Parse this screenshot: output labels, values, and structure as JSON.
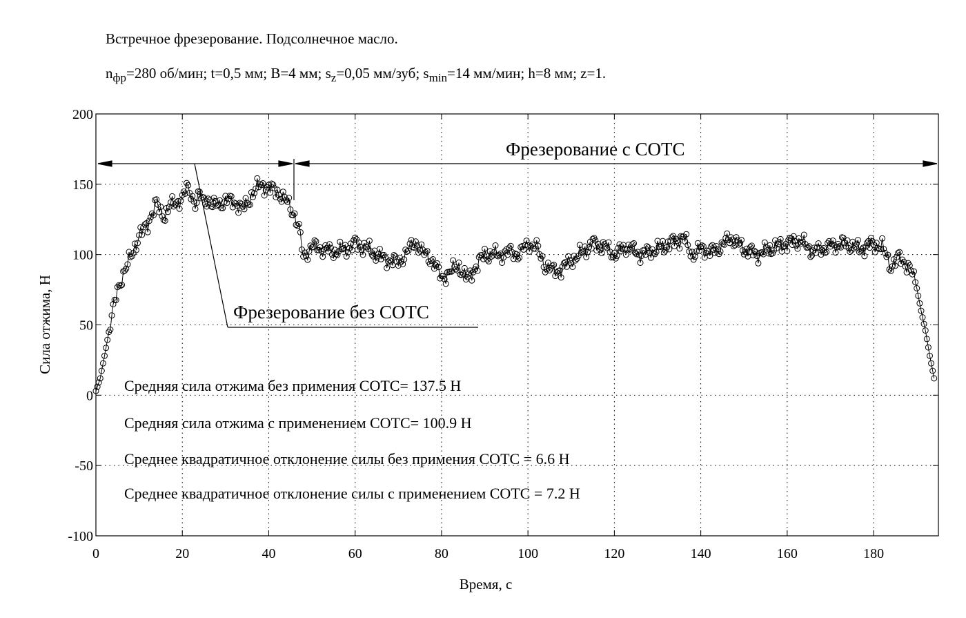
{
  "header": {
    "title": "Встречное фрезерование. Подсолнечное масло.",
    "params": [
      {
        "t": "n",
        "sub": "фр"
      },
      {
        "t": "=280 об/мин; t=0,5 мм; B=4 мм; s",
        "sub": "z"
      },
      {
        "t": "=0,05 мм/зуб; s",
        "sub": "min"
      },
      {
        "t": "=14 мм/мин; h=8 мм; z=1.",
        "sub": ""
      }
    ]
  },
  "chart_data": {
    "type": "line",
    "xlabel": "Время, с",
    "ylabel": "Сила отжима, Н",
    "xlim": [
      0,
      195
    ],
    "ylim": [
      -100,
      200
    ],
    "xticks": [
      0,
      20,
      40,
      60,
      80,
      100,
      120,
      140,
      160,
      180
    ],
    "yticks": [
      -100,
      -50,
      0,
      50,
      100,
      150,
      200
    ],
    "grid": true,
    "marker": "circle",
    "series": [
      {
        "keypoints": [
          [
            0,
            3
          ],
          [
            1,
            12
          ],
          [
            2,
            28
          ],
          [
            3,
            45
          ],
          [
            4,
            60
          ],
          [
            5,
            75
          ],
          [
            6,
            84
          ],
          [
            7,
            90
          ],
          [
            8,
            98
          ],
          [
            9,
            106
          ],
          [
            10,
            113
          ],
          [
            11,
            117
          ],
          [
            12,
            122
          ],
          [
            13,
            130
          ],
          [
            14,
            136
          ],
          [
            15,
            130
          ],
          [
            16,
            128
          ],
          [
            17,
            134
          ],
          [
            18,
            136
          ],
          [
            19,
            138
          ],
          [
            20,
            140
          ],
          [
            21,
            147
          ],
          [
            22,
            144
          ],
          [
            23,
            136
          ],
          [
            24,
            142
          ],
          [
            25,
            138
          ],
          [
            26,
            140
          ],
          [
            27,
            134
          ],
          [
            28,
            136
          ],
          [
            30,
            138
          ],
          [
            32,
            138
          ],
          [
            34,
            132
          ],
          [
            36,
            142
          ],
          [
            38,
            150
          ],
          [
            40,
            147
          ],
          [
            42,
            145
          ],
          [
            44,
            138
          ],
          [
            45,
            134
          ],
          [
            46,
            128
          ],
          [
            47,
            118
          ],
          [
            48,
            98
          ],
          [
            49,
            102
          ],
          [
            50,
            106
          ],
          [
            55,
            102
          ],
          [
            58,
            104
          ],
          [
            60,
            108
          ],
          [
            63,
            104
          ],
          [
            66,
            98
          ],
          [
            68,
            96
          ],
          [
            70,
            94
          ],
          [
            72,
            102
          ],
          [
            74,
            109
          ],
          [
            76,
            100
          ],
          [
            78,
            96
          ],
          [
            80,
            83
          ],
          [
            82,
            88
          ],
          [
            84,
            92
          ],
          [
            86,
            82
          ],
          [
            88,
            92
          ],
          [
            90,
            100
          ],
          [
            94,
            100
          ],
          [
            96,
            102
          ],
          [
            98,
            100
          ],
          [
            100,
            108
          ],
          [
            102,
            105
          ],
          [
            104,
            92
          ],
          [
            106,
            88
          ],
          [
            108,
            90
          ],
          [
            110,
            96
          ],
          [
            112,
            100
          ],
          [
            115,
            108
          ],
          [
            118,
            105
          ],
          [
            120,
            100
          ],
          [
            123,
            106
          ],
          [
            126,
            100
          ],
          [
            130,
            104
          ],
          [
            133,
            108
          ],
          [
            136,
            112
          ],
          [
            138,
            100
          ],
          [
            140,
            104
          ],
          [
            143,
            102
          ],
          [
            147,
            112
          ],
          [
            150,
            104
          ],
          [
            153,
            100
          ],
          [
            156,
            104
          ],
          [
            160,
            108
          ],
          [
            163,
            110
          ],
          [
            166,
            102
          ],
          [
            170,
            106
          ],
          [
            173,
            108
          ],
          [
            177,
            104
          ],
          [
            180,
            108
          ],
          [
            182,
            105
          ],
          [
            184,
            92
          ],
          [
            186,
            98
          ],
          [
            188,
            92
          ],
          [
            189,
            86
          ],
          [
            190,
            76
          ],
          [
            191,
            60
          ],
          [
            192,
            46
          ],
          [
            193,
            28
          ],
          [
            194,
            12
          ]
        ]
      }
    ],
    "annotations": [
      {
        "text": "Фрезерование без СОТС"
      },
      {
        "text": "Фрезерование с СОТС"
      }
    ],
    "stats": [
      "Средняя сила отжима без примения СОТС= 137.5 Н",
      "Средняя сила отжима с применением СОТС= 100.9 Н",
      "Среднее квадратичное отклонение силы без примения СОТС = 6.6 Н",
      "Среднее квадратичное отклонение силы с применением СОТС = 7.2 Н"
    ]
  }
}
